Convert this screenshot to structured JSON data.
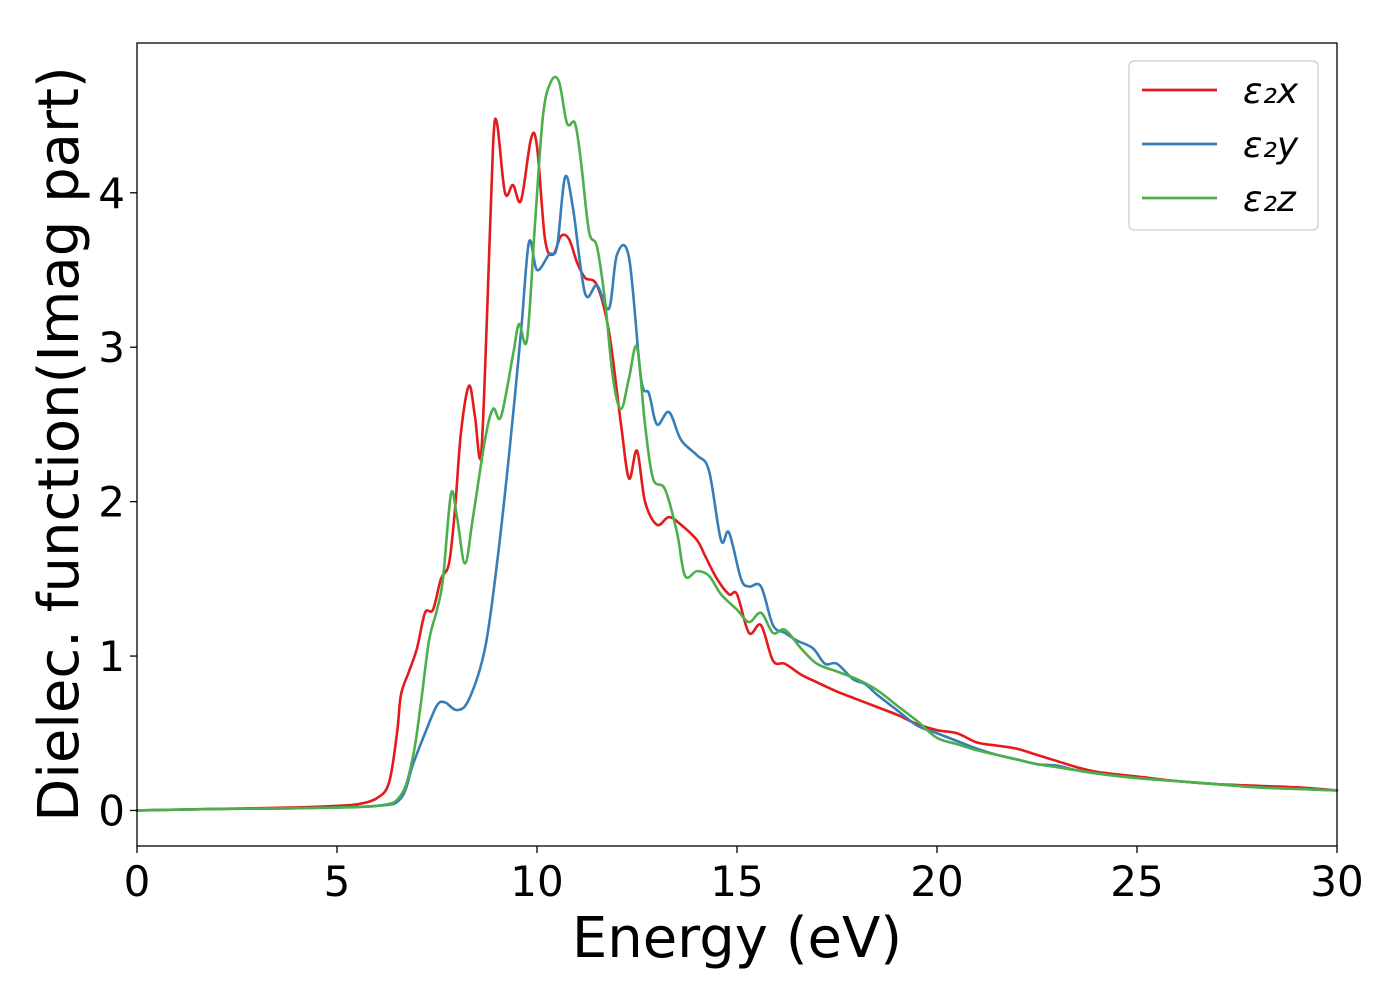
{
  "chart_data": {
    "type": "line",
    "title": "",
    "xlabel": "Energy (eV)",
    "ylabel": "Dielec. function(Imag part)",
    "xlim": [
      0,
      30
    ],
    "ylim": [
      -0.23,
      4.97
    ],
    "xticks": [
      0,
      5,
      10,
      15,
      20,
      25,
      30
    ],
    "yticks": [
      0,
      1,
      2,
      3,
      4
    ],
    "grid": false,
    "legend_position": "top-right",
    "series": [
      {
        "name": "ε₂x",
        "color": "#e41a1c",
        "points": [
          [
            0,
            0
          ],
          [
            2,
            0.01
          ],
          [
            4,
            0.02
          ],
          [
            5,
            0.03
          ],
          [
            5.5,
            0.04
          ],
          [
            6,
            0.08
          ],
          [
            6.3,
            0.18
          ],
          [
            6.5,
            0.5
          ],
          [
            6.6,
            0.75
          ],
          [
            6.8,
            0.9
          ],
          [
            7,
            1.05
          ],
          [
            7.2,
            1.28
          ],
          [
            7.4,
            1.3
          ],
          [
            7.6,
            1.5
          ],
          [
            7.8,
            1.6
          ],
          [
            7.95,
            1.95
          ],
          [
            8.1,
            2.45
          ],
          [
            8.3,
            2.75
          ],
          [
            8.45,
            2.55
          ],
          [
            8.6,
            2.3
          ],
          [
            8.75,
            3.2
          ],
          [
            8.9,
            4.3
          ],
          [
            9.0,
            4.45
          ],
          [
            9.2,
            4.0
          ],
          [
            9.4,
            4.05
          ],
          [
            9.6,
            3.95
          ],
          [
            9.85,
            4.35
          ],
          [
            10.0,
            4.3
          ],
          [
            10.2,
            3.7
          ],
          [
            10.4,
            3.6
          ],
          [
            10.6,
            3.72
          ],
          [
            10.8,
            3.7
          ],
          [
            11.0,
            3.55
          ],
          [
            11.2,
            3.45
          ],
          [
            11.5,
            3.4
          ],
          [
            11.8,
            3.1
          ],
          [
            12.1,
            2.5
          ],
          [
            12.3,
            2.15
          ],
          [
            12.5,
            2.33
          ],
          [
            12.7,
            2.0
          ],
          [
            13.0,
            1.85
          ],
          [
            13.3,
            1.9
          ],
          [
            13.6,
            1.85
          ],
          [
            14.0,
            1.75
          ],
          [
            14.2,
            1.65
          ],
          [
            14.5,
            1.5
          ],
          [
            14.8,
            1.4
          ],
          [
            15.0,
            1.4
          ],
          [
            15.3,
            1.15
          ],
          [
            15.6,
            1.2
          ],
          [
            15.9,
            0.97
          ],
          [
            16.2,
            0.95
          ],
          [
            16.6,
            0.88
          ],
          [
            17.0,
            0.83
          ],
          [
            17.5,
            0.77
          ],
          [
            18.0,
            0.72
          ],
          [
            18.5,
            0.67
          ],
          [
            19.0,
            0.62
          ],
          [
            19.5,
            0.56
          ],
          [
            20.0,
            0.52
          ],
          [
            20.5,
            0.5
          ],
          [
            21.0,
            0.44
          ],
          [
            21.5,
            0.42
          ],
          [
            22.0,
            0.4
          ],
          [
            22.5,
            0.36
          ],
          [
            23.0,
            0.32
          ],
          [
            23.5,
            0.28
          ],
          [
            24.0,
            0.25
          ],
          [
            25.0,
            0.22
          ],
          [
            26.0,
            0.19
          ],
          [
            27.0,
            0.17
          ],
          [
            28.0,
            0.16
          ],
          [
            29.0,
            0.15
          ],
          [
            30.0,
            0.13
          ]
        ]
      },
      {
        "name": "ε₂y",
        "color": "#377eb8",
        "points": [
          [
            0,
            0
          ],
          [
            2,
            0.01
          ],
          [
            4,
            0.015
          ],
          [
            6,
            0.03
          ],
          [
            6.6,
            0.08
          ],
          [
            6.9,
            0.3
          ],
          [
            7.2,
            0.5
          ],
          [
            7.5,
            0.68
          ],
          [
            7.7,
            0.7
          ],
          [
            8.0,
            0.65
          ],
          [
            8.3,
            0.72
          ],
          [
            8.7,
            1.05
          ],
          [
            9.0,
            1.6
          ],
          [
            9.3,
            2.3
          ],
          [
            9.6,
            3.1
          ],
          [
            9.8,
            3.68
          ],
          [
            10.0,
            3.5
          ],
          [
            10.3,
            3.6
          ],
          [
            10.5,
            3.65
          ],
          [
            10.7,
            4.1
          ],
          [
            10.9,
            3.9
          ],
          [
            11.2,
            3.35
          ],
          [
            11.5,
            3.4
          ],
          [
            11.8,
            3.25
          ],
          [
            12.0,
            3.6
          ],
          [
            12.3,
            3.58
          ],
          [
            12.6,
            2.8
          ],
          [
            12.8,
            2.7
          ],
          [
            13.0,
            2.5
          ],
          [
            13.3,
            2.58
          ],
          [
            13.6,
            2.4
          ],
          [
            14.0,
            2.3
          ],
          [
            14.3,
            2.2
          ],
          [
            14.6,
            1.75
          ],
          [
            14.8,
            1.8
          ],
          [
            15.1,
            1.5
          ],
          [
            15.3,
            1.45
          ],
          [
            15.6,
            1.45
          ],
          [
            15.9,
            1.2
          ],
          [
            16.2,
            1.15
          ],
          [
            16.5,
            1.1
          ],
          [
            16.9,
            1.05
          ],
          [
            17.2,
            0.95
          ],
          [
            17.5,
            0.95
          ],
          [
            17.9,
            0.85
          ],
          [
            18.2,
            0.82
          ],
          [
            18.5,
            0.75
          ],
          [
            19.0,
            0.65
          ],
          [
            19.5,
            0.55
          ],
          [
            20.0,
            0.5
          ],
          [
            20.5,
            0.45
          ],
          [
            21.0,
            0.4
          ],
          [
            21.5,
            0.36
          ],
          [
            22.0,
            0.33
          ],
          [
            22.5,
            0.3
          ],
          [
            23.0,
            0.29
          ],
          [
            23.5,
            0.26
          ],
          [
            24.0,
            0.24
          ],
          [
            25.0,
            0.21
          ],
          [
            26.0,
            0.19
          ],
          [
            27.0,
            0.17
          ],
          [
            28.0,
            0.15
          ],
          [
            29.0,
            0.14
          ],
          [
            30.0,
            0.13
          ]
        ]
      },
      {
        "name": "ε₂z",
        "color": "#4daf4a",
        "points": [
          [
            0,
            0
          ],
          [
            2,
            0.01
          ],
          [
            4,
            0.015
          ],
          [
            6,
            0.03
          ],
          [
            6.6,
            0.1
          ],
          [
            6.9,
            0.35
          ],
          [
            7.1,
            0.7
          ],
          [
            7.3,
            1.1
          ],
          [
            7.5,
            1.3
          ],
          [
            7.65,
            1.5
          ],
          [
            7.85,
            2.05
          ],
          [
            8.0,
            1.9
          ],
          [
            8.2,
            1.6
          ],
          [
            8.4,
            1.9
          ],
          [
            8.7,
            2.4
          ],
          [
            8.9,
            2.6
          ],
          [
            9.1,
            2.55
          ],
          [
            9.4,
            2.95
          ],
          [
            9.55,
            3.15
          ],
          [
            9.75,
            3.05
          ],
          [
            9.95,
            3.8
          ],
          [
            10.15,
            4.5
          ],
          [
            10.35,
            4.72
          ],
          [
            10.55,
            4.72
          ],
          [
            10.75,
            4.45
          ],
          [
            10.95,
            4.45
          ],
          [
            11.1,
            4.2
          ],
          [
            11.3,
            3.75
          ],
          [
            11.5,
            3.65
          ],
          [
            11.7,
            3.3
          ],
          [
            11.9,
            2.8
          ],
          [
            12.1,
            2.6
          ],
          [
            12.3,
            2.8
          ],
          [
            12.5,
            3.0
          ],
          [
            12.7,
            2.5
          ],
          [
            12.9,
            2.15
          ],
          [
            13.2,
            2.08
          ],
          [
            13.5,
            1.8
          ],
          [
            13.7,
            1.52
          ],
          [
            14.0,
            1.55
          ],
          [
            14.3,
            1.52
          ],
          [
            14.6,
            1.4
          ],
          [
            15.0,
            1.3
          ],
          [
            15.3,
            1.22
          ],
          [
            15.6,
            1.28
          ],
          [
            15.9,
            1.15
          ],
          [
            16.2,
            1.17
          ],
          [
            16.6,
            1.05
          ],
          [
            17.0,
            0.95
          ],
          [
            17.5,
            0.9
          ],
          [
            18.0,
            0.85
          ],
          [
            18.5,
            0.78
          ],
          [
            19.0,
            0.68
          ],
          [
            19.5,
            0.58
          ],
          [
            20.0,
            0.47
          ],
          [
            20.5,
            0.43
          ],
          [
            21.0,
            0.39
          ],
          [
            21.5,
            0.36
          ],
          [
            22.0,
            0.33
          ],
          [
            22.5,
            0.3
          ],
          [
            23.0,
            0.28
          ],
          [
            23.5,
            0.26
          ],
          [
            24.0,
            0.24
          ],
          [
            25.0,
            0.21
          ],
          [
            26.0,
            0.19
          ],
          [
            27.0,
            0.17
          ],
          [
            28.0,
            0.15
          ],
          [
            29.0,
            0.14
          ],
          [
            30.0,
            0.13
          ]
        ]
      }
    ]
  }
}
